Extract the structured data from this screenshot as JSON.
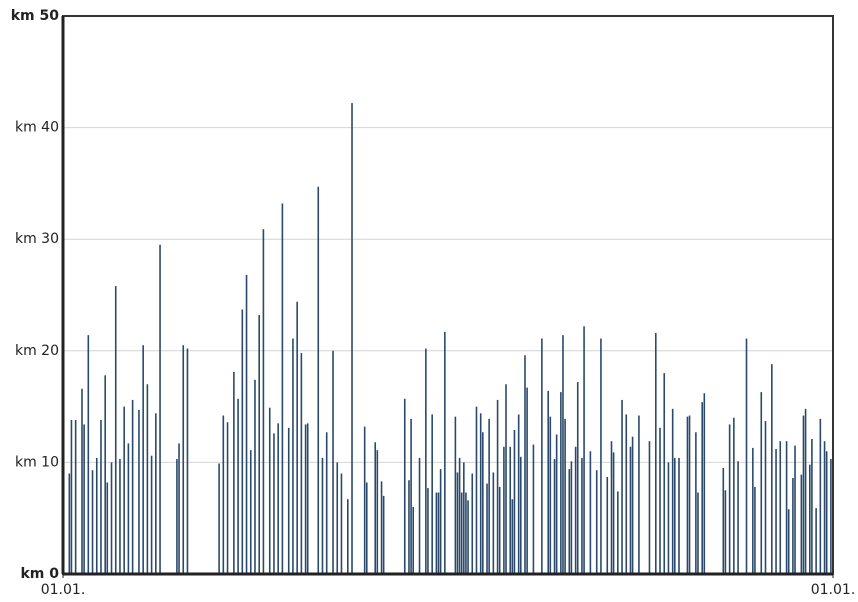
{
  "chart_data": {
    "type": "bar",
    "color": "#2b4a6b",
    "grid": true,
    "xlim": [
      0,
      365
    ],
    "ylim": [
      0,
      50
    ],
    "xticks": [
      {
        "value": 0,
        "label": "01.01."
      },
      {
        "value": 365,
        "label": "01.01."
      }
    ],
    "yticks": [
      {
        "value": 0,
        "label": "km 0"
      },
      {
        "value": 10,
        "label": "km 10"
      },
      {
        "value": 20,
        "label": "km 20"
      },
      {
        "value": 30,
        "label": "km 30"
      },
      {
        "value": 40,
        "label": "km 40"
      },
      {
        "value": 50,
        "label": "km 50"
      }
    ],
    "x": [
      3,
      4,
      6,
      9,
      10,
      12,
      14,
      16,
      18,
      20,
      21,
      23,
      25,
      27,
      29,
      31,
      33,
      36,
      38,
      40,
      42,
      44,
      46,
      54,
      55,
      57,
      59,
      74,
      76,
      78,
      81,
      83,
      85,
      87,
      89,
      91,
      93,
      95,
      98,
      100,
      102,
      104,
      107,
      109,
      111,
      113,
      115,
      116,
      121,
      123,
      125,
      128,
      130,
      132,
      135,
      137,
      143,
      144,
      148,
      149,
      151,
      152,
      162,
      164,
      165,
      166,
      169,
      172,
      173,
      175,
      177,
      178,
      179,
      181,
      186,
      187,
      188,
      189,
      190,
      191,
      192,
      194,
      196,
      198,
      199,
      201,
      202,
      204,
      206,
      207,
      209,
      210,
      212,
      213,
      214,
      216,
      217,
      219,
      220,
      223,
      227,
      230,
      231,
      233,
      234,
      236,
      237,
      238,
      240,
      241,
      243,
      244,
      246,
      247,
      250,
      253,
      255,
      258,
      260,
      261,
      263,
      265,
      267,
      269,
      270,
      273,
      278,
      281,
      283,
      285,
      287,
      289,
      290,
      292,
      296,
      297,
      300,
      301,
      303,
      304,
      313,
      314,
      316,
      318,
      320,
      324,
      327,
      328,
      331,
      333,
      336,
      338,
      340,
      343,
      344,
      346,
      347,
      350,
      351,
      352,
      354,
      355,
      357,
      359,
      361,
      362,
      364
    ],
    "values": [
      9,
      13.8,
      13.8,
      16.6,
      13.4,
      21.4,
      9.3,
      10.4,
      13.8,
      17.8,
      8.2,
      10,
      25.8,
      10.3,
      15,
      11.7,
      15.6,
      14.7,
      20.5,
      17,
      10.6,
      14.4,
      29.5,
      10.3,
      11.7,
      20.5,
      20.2,
      9.9,
      14.2,
      13.6,
      18.1,
      15.7,
      23.7,
      26.8,
      11.1,
      17.4,
      23.2,
      30.9,
      14.9,
      12.6,
      13.5,
      33.2,
      13.1,
      21.1,
      24.4,
      19.8,
      13.4,
      13.5,
      34.7,
      10.4,
      12.7,
      20,
      10,
      9,
      6.7,
      42.2,
      13.2,
      8.2,
      11.8,
      11.1,
      8.3,
      7,
      15.7,
      8.4,
      13.9,
      6,
      10.4,
      20.2,
      7.7,
      14.3,
      7.3,
      7.3,
      9.4,
      21.7,
      14.1,
      9.1,
      10.4,
      7.3,
      10,
      7.3,
      6.6,
      9,
      15,
      14.4,
      12.7,
      8.1,
      13.9,
      9.1,
      15.6,
      7.8,
      11.4,
      17,
      11.4,
      6.7,
      12.9,
      14.3,
      10.5,
      19.6,
      16.7,
      11.6,
      21.1,
      16.4,
      14.1,
      10.3,
      12.5,
      16.3,
      21.4,
      13.9,
      9.4,
      10.1,
      11.4,
      17.2,
      10.4,
      22.2,
      11,
      9.3,
      21.1,
      8.7,
      11.9,
      10.9,
      7.4,
      15.6,
      14.3,
      11.4,
      12.3,
      14.2,
      11.9,
      21.6,
      13.1,
      18,
      10,
      14.8,
      10.4,
      10.4,
      14.1,
      14.2,
      12.7,
      7.3,
      15.4,
      16.2,
      9.5,
      7.5,
      13.4,
      14,
      10.1,
      21.1,
      11.3,
      7.8,
      16.3,
      13.7,
      18.8,
      11.2,
      11.9,
      11.9,
      5.8,
      8.6,
      11.5,
      8.9,
      14.2,
      14.8,
      9.8,
      12.1,
      5.9,
      13.9,
      11.9,
      11,
      10.3
    ]
  }
}
